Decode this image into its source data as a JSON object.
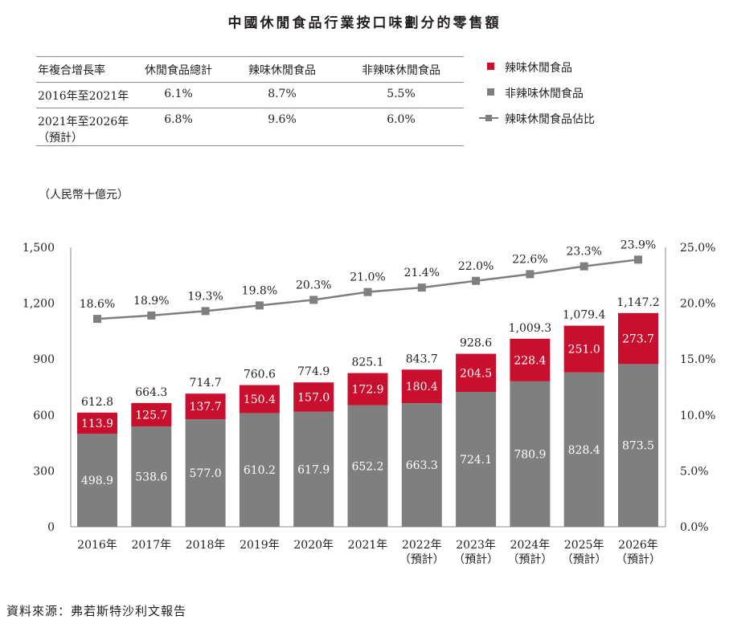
{
  "title": "中國休閒食品行業按口味劃分的零售額",
  "cagr_table": {
    "headers": [
      "年複合增長率",
      "休閒食品總計",
      "辣味休閒食品",
      "非辣味休閒食品"
    ],
    "rows": [
      {
        "period": "2016年至2021年",
        "note": "",
        "total": "6.1%",
        "spicy": "8.7%",
        "non_spicy": "5.5%"
      },
      {
        "period": "2021年至2026年",
        "note": "（預計）",
        "total": "6.8%",
        "spicy": "9.6%",
        "non_spicy": "6.0%"
      }
    ]
  },
  "legend": {
    "spicy": "辣味休閒食品",
    "non_spicy": "非辣味休閒食品",
    "share": "辣味休閒食品佔比"
  },
  "unit_label": "（人民幣十億元）",
  "source": "資料來源：弗若斯特沙利文報告",
  "colors": {
    "spicy": "#c8102e",
    "non_spicy": "#7f7f80",
    "share": "#7f7f80"
  },
  "chart_data": {
    "type": "bar",
    "stacked": true,
    "categories": [
      "2016年",
      "2017年",
      "2018年",
      "2019年",
      "2020年",
      "2021年",
      "2022年",
      "2023年",
      "2024年",
      "2025年",
      "2026年"
    ],
    "category_notes": [
      "",
      "",
      "",
      "",
      "",
      "",
      "（預計）",
      "（預計）",
      "（預計）",
      "（預計）",
      "（預計）"
    ],
    "series": [
      {
        "name": "非辣味休閒食品",
        "values": [
          498.9,
          538.6,
          577.0,
          610.2,
          617.9,
          652.2,
          663.3,
          724.1,
          780.9,
          828.4,
          873.5
        ],
        "labels": [
          "498.9",
          "538.6",
          "577.0",
          "610.2",
          "617.9",
          "652.2",
          "663.3",
          "724.1",
          "780.9",
          "828.4",
          "873.5"
        ]
      },
      {
        "name": "辣味休閒食品",
        "values": [
          113.9,
          125.7,
          137.7,
          150.4,
          157.0,
          172.9,
          180.4,
          204.5,
          228.4,
          251.0,
          273.7
        ],
        "labels": [
          "113.9",
          "125.7",
          "137.7",
          "150.4",
          "157.0",
          "172.9",
          "180.4",
          "204.5",
          "228.4",
          "251.0",
          "273.7"
        ]
      }
    ],
    "totals": [
      612.8,
      664.3,
      714.7,
      760.6,
      774.9,
      825.1,
      843.7,
      928.6,
      1009.3,
      1079.4,
      1147.2
    ],
    "total_labels": [
      "612.8",
      "664.3",
      "714.7",
      "760.6",
      "774.9",
      "825.1",
      "843.7",
      "928.6",
      "1,009.3",
      "1,079.4",
      "1,147.2"
    ],
    "line_series": {
      "name": "辣味休閒食品佔比",
      "axis": "right",
      "values": [
        18.6,
        18.9,
        19.3,
        19.8,
        20.3,
        21.0,
        21.4,
        22.0,
        22.6,
        23.3,
        23.9
      ],
      "labels": [
        "18.6%",
        "18.9%",
        "19.3%",
        "19.8%",
        "20.3%",
        "21.0%",
        "21.4%",
        "22.0%",
        "22.6%",
        "23.3%",
        "23.9%"
      ]
    },
    "ylim": [
      0,
      1500
    ],
    "y_ticks": [
      "0",
      "300",
      "600",
      "900",
      "1,200",
      "1,500"
    ],
    "y2lim": [
      0,
      25
    ],
    "y2_ticks": [
      "0.0%",
      "5.0%",
      "10.0%",
      "15.0%",
      "20.0%",
      "25.0%"
    ],
    "grid": false
  }
}
